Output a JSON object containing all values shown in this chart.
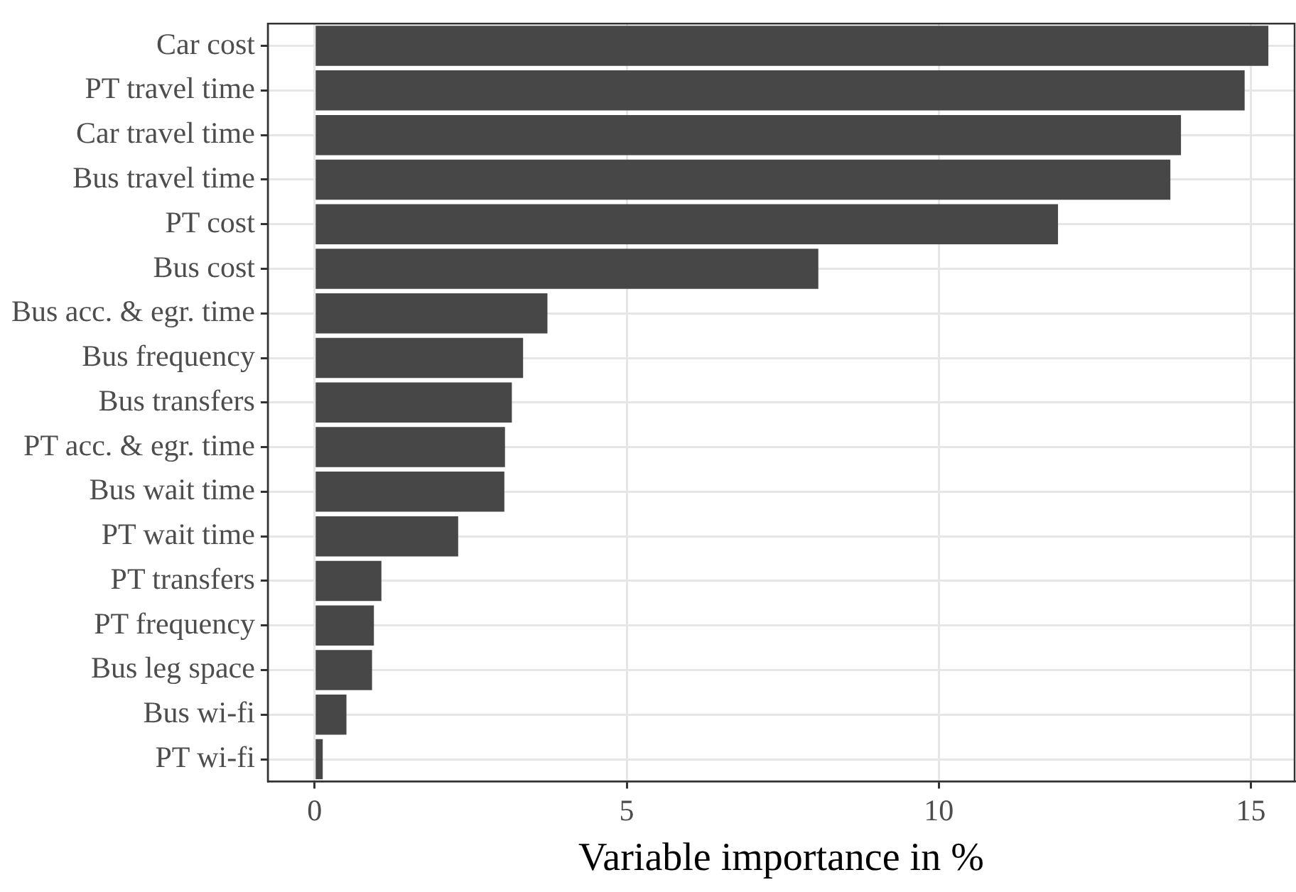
{
  "chart_data": {
    "type": "bar",
    "orientation": "horizontal",
    "xlabel": "Variable importance in %",
    "categories": [
      "Car cost",
      "PT travel time",
      "Car travel time",
      "Bus travel time",
      "PT cost",
      "Bus cost",
      "Bus acc. & egr. time",
      "Bus frequency",
      "Bus transfers",
      "PT acc. & egr. time",
      "Bus wait time",
      "PT wait time",
      "PT transfers",
      "PT frequency",
      "Bus leg space",
      "Bus wi-fi",
      "PT wi-fi"
    ],
    "values": [
      15.28,
      14.9,
      13.88,
      13.71,
      11.91,
      8.07,
      3.73,
      3.34,
      3.16,
      3.05,
      3.04,
      2.3,
      1.07,
      0.95,
      0.92,
      0.51,
      0.13
    ],
    "color": "#474747",
    "xlim": [
      -0.75,
      15.7
    ],
    "xticks": [
      0,
      5,
      10,
      15
    ],
    "grid": true,
    "legend": false
  }
}
